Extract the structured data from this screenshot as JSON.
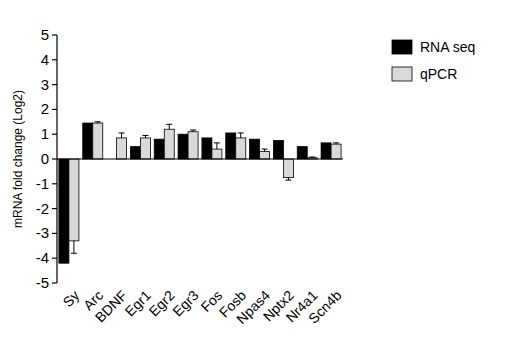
{
  "chart_data": {
    "type": "bar",
    "y_label": "mRNA fold change (Log2)",
    "categories": [
      "Sy",
      "Arc",
      "BDNF",
      "Egr1",
      "Egr2",
      "Egr3",
      "Fos",
      "Fosb",
      "Npas4",
      "Nptx2",
      "Nr4a1",
      "Scn4b"
    ],
    "series": [
      {
        "name": "RNA seq",
        "color": "#000000",
        "values": [
          -4.2,
          1.45,
          null,
          0.5,
          0.8,
          1.0,
          0.85,
          1.05,
          0.8,
          0.75,
          0.5,
          0.65
        ]
      },
      {
        "name": "qPCR",
        "color": "#d9d9d9",
        "values": [
          -3.3,
          1.45,
          0.85,
          0.85,
          1.2,
          1.1,
          0.4,
          0.85,
          0.3,
          -0.75,
          0.05,
          0.6
        ],
        "errors": [
          0.5,
          0.05,
          0.2,
          0.1,
          0.2,
          0.07,
          0.25,
          0.2,
          0.1,
          0.1,
          0.03,
          0.05
        ]
      }
    ],
    "ylim": [
      -5,
      5
    ],
    "yticks": [
      -5,
      -4,
      -3,
      -2,
      -1,
      0,
      1,
      2,
      3,
      4,
      5
    ],
    "grid": false,
    "legend": "top-right"
  }
}
